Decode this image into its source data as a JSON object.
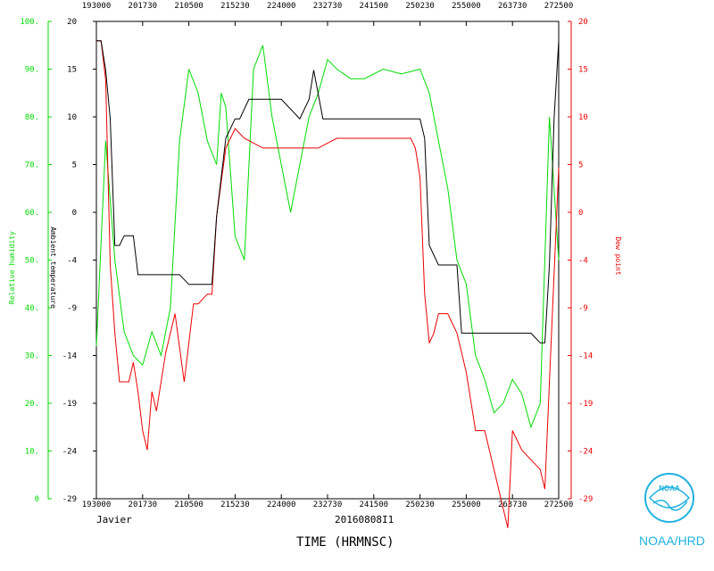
{
  "chart_data": {
    "type": "line",
    "title": "",
    "xlabel": "TIME (HRMNSC)",
    "storm_name": "Javier",
    "flight_id": "20160808I1",
    "x_ticks": [
      "193000",
      "201730",
      "210500",
      "215230",
      "224000",
      "232730",
      "241500",
      "250230",
      "255000",
      "263730",
      "272500"
    ],
    "y_left_green": {
      "label": "Relative humidity",
      "ticks": [
        "0",
        "10.",
        "20.",
        "30.",
        "40.",
        "50.",
        "60.",
        "70.",
        "80.",
        "90.",
        "100."
      ],
      "ylim": [
        0,
        100
      ]
    },
    "y_left_black": {
      "label": "Ambient temperature",
      "ticks": [
        "-29",
        "-24",
        "-19",
        "-14",
        "-9",
        "-4",
        "0",
        "5",
        "10",
        "15",
        "20"
      ],
      "ylim": [
        -29,
        20
      ]
    },
    "y_right_red": {
      "label": "Dew point",
      "ticks": [
        "-29",
        "-24",
        "-19",
        "-14",
        "-9",
        "-4",
        "0",
        "5",
        "10",
        "15",
        "20"
      ],
      "ylim": [
        -29,
        20
      ]
    },
    "series": [
      {
        "name": "Relative humidity",
        "color": "#00dd00",
        "x": [
          0.0,
          0.02,
          0.04,
          0.06,
          0.08,
          0.1,
          0.12,
          0.14,
          0.16,
          0.18,
          0.2,
          0.22,
          0.24,
          0.26,
          0.27,
          0.28,
          0.3,
          0.32,
          0.34,
          0.36,
          0.38,
          0.4,
          0.42,
          0.44,
          0.46,
          0.48,
          0.5,
          0.52,
          0.55,
          0.58,
          0.62,
          0.66,
          0.7,
          0.72,
          0.74,
          0.76,
          0.78,
          0.8,
          0.82,
          0.84,
          0.86,
          0.88,
          0.9,
          0.92,
          0.94,
          0.96,
          0.98,
          1.0
        ],
        "values": [
          32,
          75,
          50,
          35,
          30,
          28,
          35,
          30,
          40,
          75,
          90,
          85,
          75,
          70,
          85,
          82,
          55,
          50,
          90,
          95,
          80,
          70,
          60,
          70,
          80,
          85,
          92,
          90,
          88,
          88,
          90,
          89,
          90,
          85,
          75,
          65,
          50,
          45,
          30,
          25,
          18,
          20,
          25,
          22,
          15,
          20,
          80,
          50
        ]
      },
      {
        "name": "Ambient temperature",
        "color": "#000000",
        "x": [
          0.0,
          0.01,
          0.02,
          0.03,
          0.04,
          0.05,
          0.06,
          0.08,
          0.09,
          0.1,
          0.12,
          0.14,
          0.16,
          0.18,
          0.2,
          0.22,
          0.25,
          0.26,
          0.28,
          0.3,
          0.31,
          0.33,
          0.36,
          0.4,
          0.44,
          0.46,
          0.47,
          0.49,
          0.52,
          0.56,
          0.6,
          0.64,
          0.68,
          0.7,
          0.71,
          0.72,
          0.74,
          0.76,
          0.78,
          0.79,
          0.8,
          0.82,
          0.86,
          0.9,
          0.94,
          0.96,
          0.97,
          0.98,
          0.99,
          1.0
        ],
        "values": [
          18,
          18,
          15,
          10,
          -3,
          -3,
          -2,
          -2,
          -6,
          -6,
          -6,
          -6,
          -6,
          -6,
          -7,
          -7,
          -7,
          0,
          8,
          10,
          10,
          12,
          12,
          12,
          10,
          12,
          15,
          10,
          10,
          10,
          10,
          10,
          10,
          10,
          8,
          -3,
          -5,
          -5,
          -5,
          -12,
          -12,
          -12,
          -12,
          -12,
          -12,
          -13,
          -13,
          -5,
          10,
          18
        ]
      },
      {
        "name": "Dew point",
        "color": "#ee0000",
        "x": [
          0.0,
          0.01,
          0.02,
          0.03,
          0.04,
          0.05,
          0.07,
          0.08,
          0.09,
          0.1,
          0.11,
          0.12,
          0.13,
          0.15,
          0.17,
          0.19,
          0.21,
          0.22,
          0.24,
          0.25,
          0.26,
          0.28,
          0.3,
          0.32,
          0.36,
          0.4,
          0.44,
          0.48,
          0.52,
          0.56,
          0.6,
          0.64,
          0.68,
          0.69,
          0.7,
          0.71,
          0.72,
          0.73,
          0.74,
          0.76,
          0.78,
          0.8,
          0.82,
          0.84,
          0.86,
          0.88,
          0.89,
          0.9,
          0.92,
          0.94,
          0.96,
          0.97,
          0.98,
          1.0
        ],
        "values": [
          18,
          18,
          14,
          -5,
          -12,
          -17,
          -17,
          -15,
          -18,
          -22,
          -24,
          -18,
          -20,
          -14,
          -10,
          -17,
          -9,
          -9,
          -8,
          -8,
          0,
          7,
          9,
          8,
          7,
          7,
          7,
          7,
          8,
          8,
          8,
          8,
          8,
          7,
          4,
          -8,
          -13,
          -12,
          -10,
          -10,
          -12,
          -16,
          -22,
          -22,
          -26,
          -30,
          -32,
          -22,
          -24,
          -25,
          -26,
          -28,
          -17,
          5
        ]
      }
    ]
  },
  "logo": {
    "text": "NOAA/HRD",
    "badge": "NOAA",
    "color": "#1fb2e0"
  }
}
